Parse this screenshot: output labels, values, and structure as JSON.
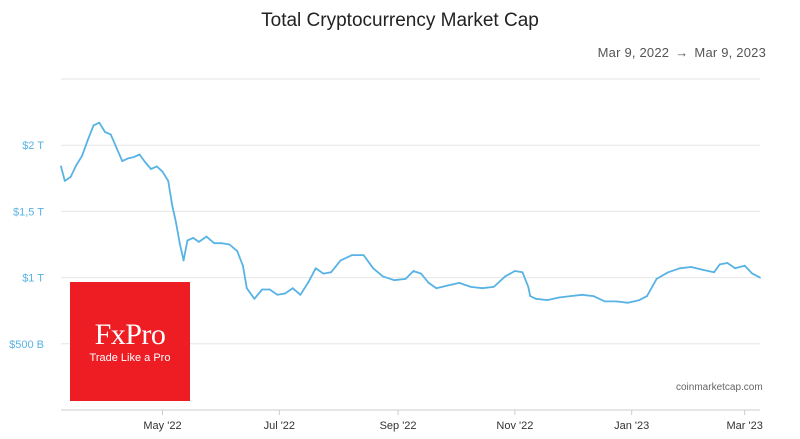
{
  "title": "Total Cryptocurrency Market Cap",
  "date_range": {
    "start": "Mar 9, 2022",
    "arrow": "→",
    "end": "Mar 9, 2023"
  },
  "source": "coinmarketcap.com",
  "logo": {
    "name": "FxPro",
    "tagline": "Trade Like a Pro"
  },
  "colors": {
    "line": "#58b3e5",
    "logo": "#ee1d23"
  },
  "chart_data": {
    "type": "line",
    "title": "Total Cryptocurrency Market Cap",
    "xlabel": "",
    "ylabel": "",
    "unit": "USD",
    "x_tick_labels": [
      "May '22",
      "Jul '22",
      "Sep '22",
      "Nov '22",
      "Jan '23",
      "Mar '23"
    ],
    "x_tick_dates": [
      "2022-05-01",
      "2022-07-01",
      "2022-09-01",
      "2022-11-01",
      "2023-01-01",
      "2023-03-01"
    ],
    "y_tick_labels": [
      "$500 B",
      "$1 T",
      "$1,5 T",
      "$2 T"
    ],
    "y_tick_values": [
      0.5,
      1.0,
      1.5,
      2.0
    ],
    "ylim": [
      0.0,
      2.5
    ],
    "xlim": [
      "2022-03-09",
      "2023-03-09"
    ],
    "grid": true,
    "series": [
      {
        "name": "",
        "color": "#58b3e5",
        "x": [
          "2022-03-09",
          "2022-03-11",
          "2022-03-14",
          "2022-03-17",
          "2022-03-20",
          "2022-03-23",
          "2022-03-26",
          "2022-03-29",
          "2022-04-01",
          "2022-04-04",
          "2022-04-07",
          "2022-04-10",
          "2022-04-13",
          "2022-04-16",
          "2022-04-19",
          "2022-04-22",
          "2022-04-25",
          "2022-04-28",
          "2022-05-01",
          "2022-05-04",
          "2022-05-06",
          "2022-05-08",
          "2022-05-10",
          "2022-05-12",
          "2022-05-14",
          "2022-05-17",
          "2022-05-20",
          "2022-05-24",
          "2022-05-28",
          "2022-06-01",
          "2022-06-05",
          "2022-06-09",
          "2022-06-12",
          "2022-06-14",
          "2022-06-18",
          "2022-06-22",
          "2022-06-26",
          "2022-06-30",
          "2022-07-04",
          "2022-07-08",
          "2022-07-12",
          "2022-07-16",
          "2022-07-20",
          "2022-07-24",
          "2022-07-28",
          "2022-08-02",
          "2022-08-08",
          "2022-08-14",
          "2022-08-19",
          "2022-08-24",
          "2022-08-30",
          "2022-09-05",
          "2022-09-09",
          "2022-09-13",
          "2022-09-17",
          "2022-09-21",
          "2022-09-27",
          "2022-10-03",
          "2022-10-09",
          "2022-10-15",
          "2022-10-21",
          "2022-10-27",
          "2022-11-01",
          "2022-11-05",
          "2022-11-08",
          "2022-11-09",
          "2022-11-12",
          "2022-11-18",
          "2022-11-24",
          "2022-11-30",
          "2022-12-06",
          "2022-12-12",
          "2022-12-18",
          "2022-12-24",
          "2022-12-30",
          "2023-01-05",
          "2023-01-09",
          "2023-01-14",
          "2023-01-20",
          "2023-01-26",
          "2023-02-01",
          "2023-02-07",
          "2023-02-13",
          "2023-02-16",
          "2023-02-20",
          "2023-02-24",
          "2023-03-01",
          "2023-03-05",
          "2023-03-09"
        ],
        "values": [
          1.84,
          1.73,
          1.76,
          1.85,
          1.92,
          2.04,
          2.15,
          2.17,
          2.1,
          2.08,
          1.98,
          1.88,
          1.9,
          1.91,
          1.93,
          1.87,
          1.82,
          1.84,
          1.8,
          1.73,
          1.55,
          1.42,
          1.26,
          1.13,
          1.28,
          1.3,
          1.27,
          1.31,
          1.26,
          1.26,
          1.25,
          1.2,
          1.09,
          0.92,
          0.84,
          0.91,
          0.91,
          0.87,
          0.88,
          0.92,
          0.87,
          0.96,
          1.07,
          1.03,
          1.04,
          1.13,
          1.17,
          1.17,
          1.07,
          1.01,
          0.98,
          0.99,
          1.05,
          1.03,
          0.96,
          0.92,
          0.94,
          0.96,
          0.93,
          0.92,
          0.93,
          1.01,
          1.05,
          1.04,
          0.93,
          0.86,
          0.84,
          0.83,
          0.85,
          0.86,
          0.87,
          0.86,
          0.82,
          0.82,
          0.81,
          0.83,
          0.86,
          0.99,
          1.04,
          1.07,
          1.08,
          1.06,
          1.04,
          1.1,
          1.11,
          1.07,
          1.09,
          1.03,
          1.0
        ]
      }
    ]
  }
}
